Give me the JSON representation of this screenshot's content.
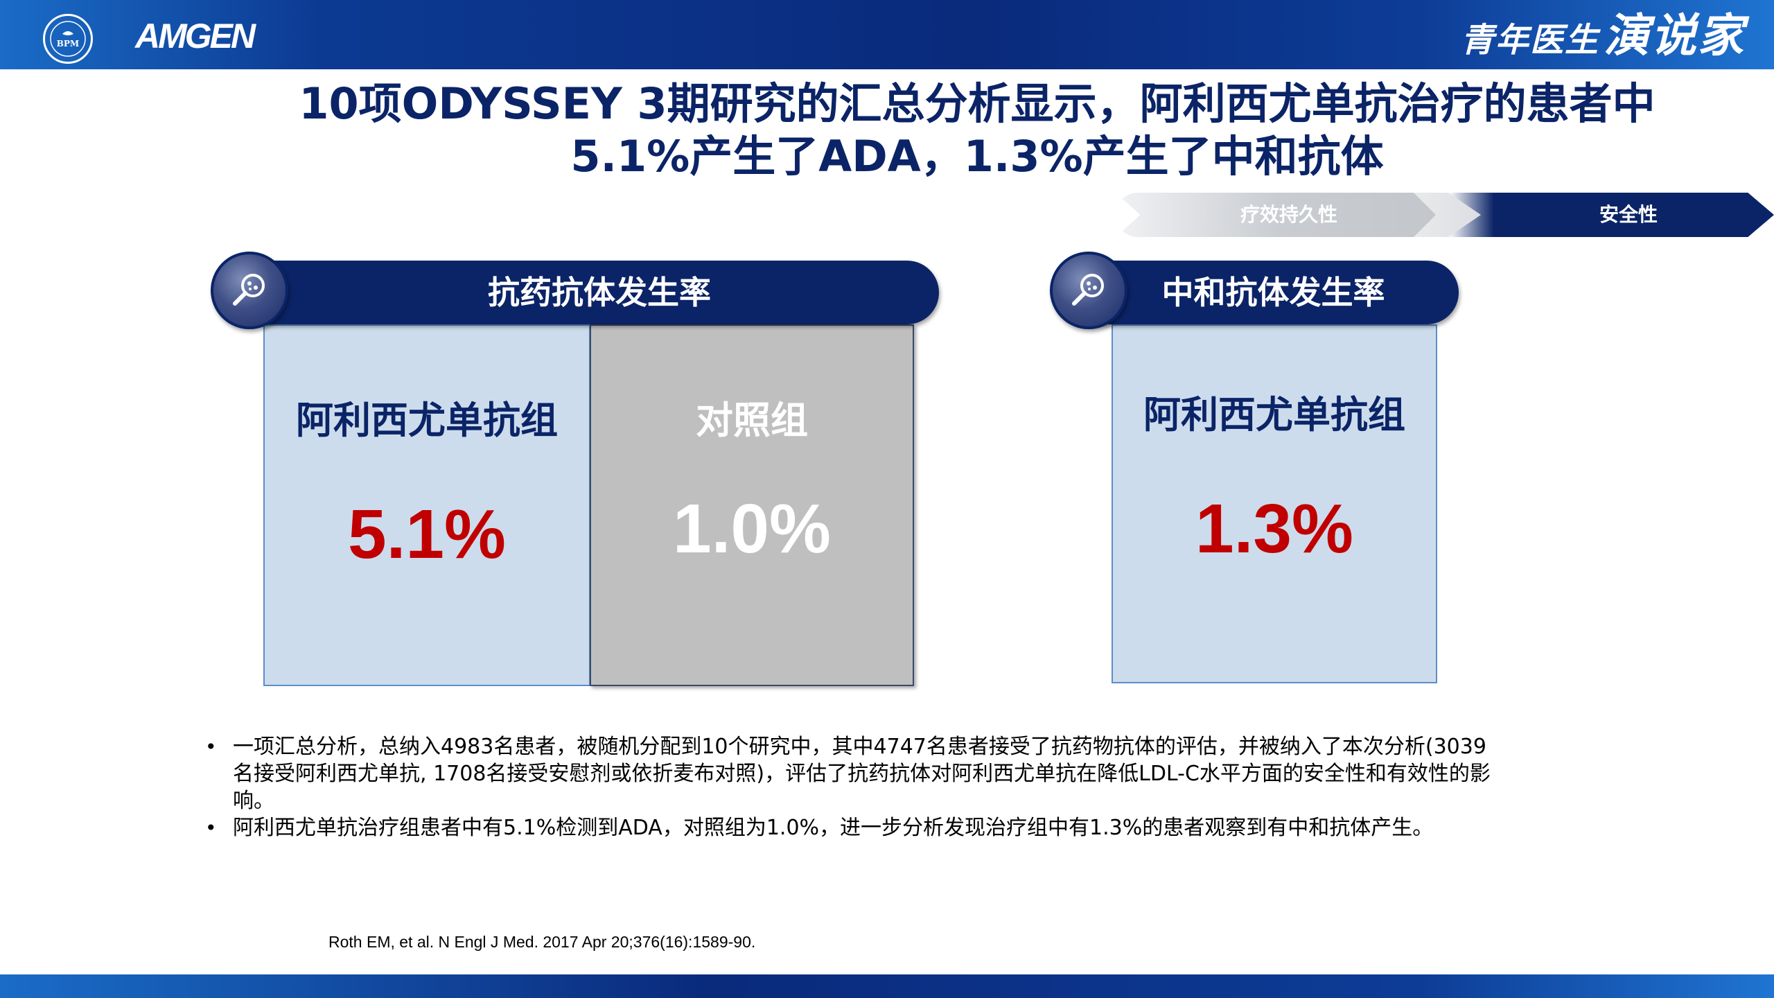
{
  "header": {
    "bpm_logo_text": "BPM",
    "amgen_logo": "AMGEN",
    "brand_part1": "青年医生",
    "brand_part2": "演说家"
  },
  "title": {
    "line1": "10项ODYSSEY 3期研究的汇总分析显示，阿利西尤单抗治疗的患者中",
    "line2": "5.1%产生了ADA，1.3%产生了中和抗体"
  },
  "progress": {
    "step1": "疗效持久性",
    "step2": "安全性"
  },
  "left_panel": {
    "header": "抗药抗体发生率",
    "icon": "magnifier-icon",
    "group1_label": "阿利西尤单抗组",
    "group1_value": "5.1%",
    "group2_label": "对照组",
    "group2_value": "1.0%"
  },
  "right_panel": {
    "header": "中和抗体发生率",
    "icon": "magnifier-icon",
    "group1_label": "阿利西尤单抗组",
    "group1_value": "1.3%"
  },
  "bullets": [
    "一项汇总分析，总纳入4983名患者，被随机分配到10个研究中，其中4747名患者接受了抗药物抗体的评估，并被纳入了本次分析(3039名接受阿利西尤单抗, 1708名接受安慰剂或依折麦布对照)，评估了抗药抗体对阿利西尤单抗在降低LDL-C水平方面的安全性和有效性的影响。",
    "阿利西尤单抗治疗组患者中有5.1%检测到ADA，对照组为1.0%，进一步分析发现治疗组中有1.3%的患者观察到有中和抗体产生。"
  ],
  "reference": "Roth EM, et al. N Engl J Med. 2017 Apr 20;376(16):1589-90.",
  "colors": {
    "navy": "#0b2467",
    "red_value": "#c00000",
    "box_blue": "#cddcec",
    "box_grey": "#bfbfbf"
  }
}
